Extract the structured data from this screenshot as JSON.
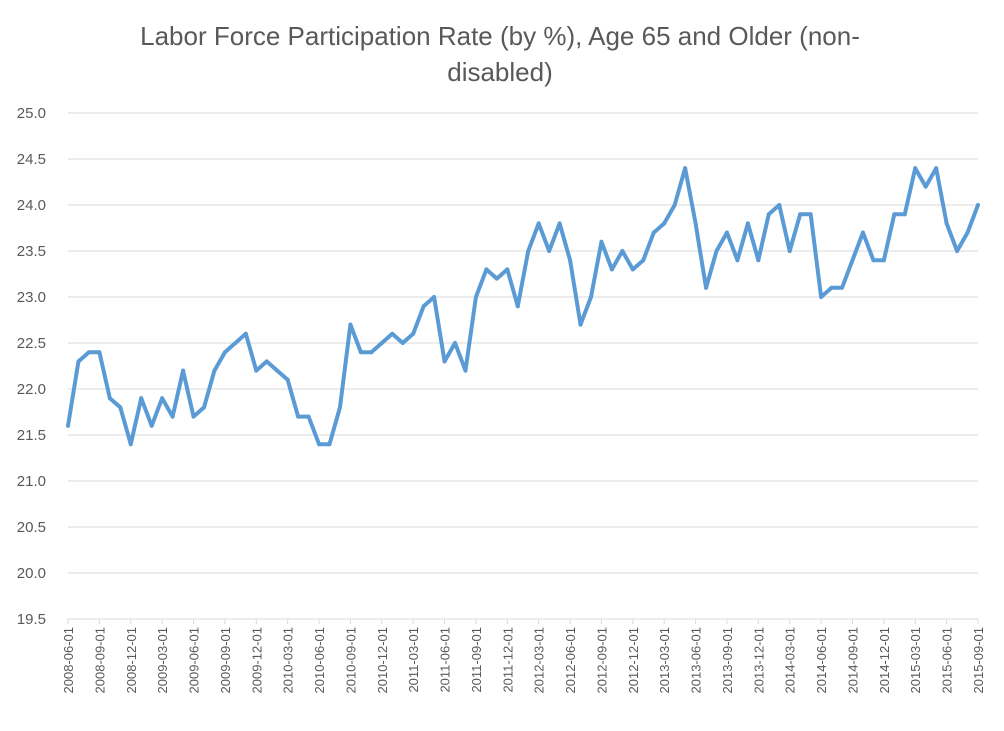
{
  "chart_data": {
    "type": "line",
    "title": "Labor Force Participation Rate (by %), Age 65 and Older (non-disabled)",
    "xlabel": "",
    "ylabel": "",
    "ylim": [
      19.5,
      25.0
    ],
    "ytick_step": 0.5,
    "grid": true,
    "legend": "none",
    "x_tick_every": 3,
    "series": [
      {
        "color": "#5b9bd5",
        "x": [
          "2008-06-01",
          "2008-07-01",
          "2008-08-01",
          "2008-09-01",
          "2008-10-01",
          "2008-11-01",
          "2008-12-01",
          "2009-01-01",
          "2009-02-01",
          "2009-03-01",
          "2009-04-01",
          "2009-05-01",
          "2009-06-01",
          "2009-07-01",
          "2009-08-01",
          "2009-09-01",
          "2009-10-01",
          "2009-11-01",
          "2009-12-01",
          "2010-01-01",
          "2010-02-01",
          "2010-03-01",
          "2010-04-01",
          "2010-05-01",
          "2010-06-01",
          "2010-07-01",
          "2010-08-01",
          "2010-09-01",
          "2010-10-01",
          "2010-11-01",
          "2010-12-01",
          "2011-01-01",
          "2011-02-01",
          "2011-03-01",
          "2011-04-01",
          "2011-05-01",
          "2011-06-01",
          "2011-07-01",
          "2011-08-01",
          "2011-09-01",
          "2011-10-01",
          "2011-11-01",
          "2011-12-01",
          "2012-01-01",
          "2012-02-01",
          "2012-03-01",
          "2012-04-01",
          "2012-05-01",
          "2012-06-01",
          "2012-07-01",
          "2012-08-01",
          "2012-09-01",
          "2012-10-01",
          "2012-11-01",
          "2012-12-01",
          "2013-01-01",
          "2013-02-01",
          "2013-03-01",
          "2013-04-01",
          "2013-05-01",
          "2013-06-01",
          "2013-07-01",
          "2013-08-01",
          "2013-09-01",
          "2013-10-01",
          "2013-11-01",
          "2013-12-01",
          "2014-01-01",
          "2014-02-01",
          "2014-03-01",
          "2014-04-01",
          "2014-05-01",
          "2014-06-01",
          "2014-07-01",
          "2014-08-01",
          "2014-09-01",
          "2014-10-01",
          "2014-11-01",
          "2014-12-01",
          "2015-01-01",
          "2015-02-01",
          "2015-03-01",
          "2015-04-01",
          "2015-05-01",
          "2015-06-01",
          "2015-07-01",
          "2015-08-01",
          "2015-09-01"
        ],
        "values": [
          21.6,
          22.3,
          22.4,
          22.4,
          21.9,
          21.8,
          21.4,
          21.9,
          21.6,
          21.9,
          21.7,
          22.2,
          21.7,
          21.8,
          22.2,
          22.4,
          22.5,
          22.6,
          22.2,
          22.3,
          22.2,
          22.1,
          21.7,
          21.7,
          21.4,
          21.4,
          21.8,
          22.7,
          22.4,
          22.4,
          22.5,
          22.6,
          22.5,
          22.6,
          22.9,
          23.0,
          22.3,
          22.5,
          22.2,
          23.0,
          23.3,
          23.2,
          23.3,
          22.9,
          23.5,
          23.8,
          23.5,
          23.8,
          23.4,
          22.7,
          23.0,
          23.6,
          23.3,
          23.5,
          23.3,
          23.4,
          23.7,
          23.8,
          24.0,
          24.4,
          23.8,
          23.1,
          23.5,
          23.7,
          23.4,
          23.8,
          23.4,
          23.9,
          24.0,
          23.5,
          23.9,
          23.9,
          23.0,
          23.1,
          23.1,
          23.4,
          23.7,
          23.4,
          23.4,
          23.9,
          23.9,
          24.4,
          24.2,
          24.4,
          23.8,
          23.5,
          23.7,
          24.0
        ]
      }
    ]
  }
}
